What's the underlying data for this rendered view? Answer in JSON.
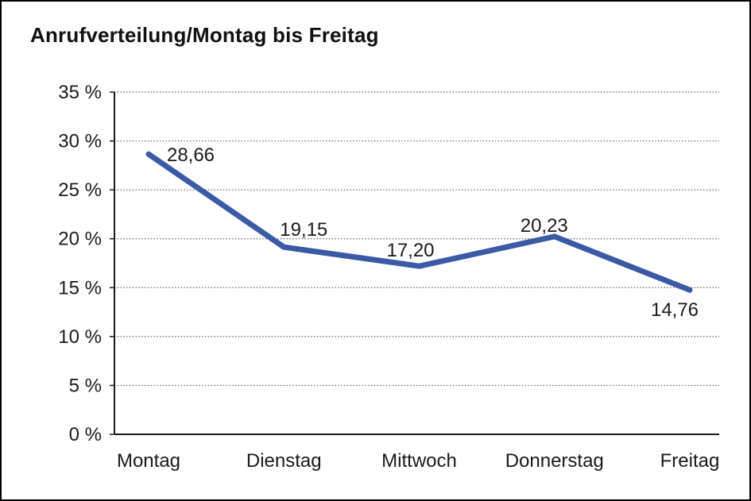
{
  "title": "Anrufverteilung/Montag bis Freitag",
  "chart_data": {
    "type": "line",
    "title": "Anrufverteilung/Montag bis Freitag",
    "categories": [
      "Montag",
      "Dienstag",
      "Mittwoch",
      "Donnerstag",
      "Freitag"
    ],
    "series": [
      {
        "name": "Anrufverteilung",
        "values": [
          28.66,
          19.15,
          17.2,
          20.23,
          14.76
        ]
      }
    ],
    "data_labels": [
      "28,66",
      "19,15",
      "17,20",
      "20,23",
      "14,76"
    ],
    "ylim": [
      0,
      35
    ],
    "ytick_values": [
      0,
      5,
      10,
      15,
      20,
      25,
      30,
      35
    ],
    "ytick_labels": [
      "0 %",
      "5 %",
      "10 %",
      "15 %",
      "20 %",
      "25 %",
      "30 %",
      "35 %"
    ],
    "xlabel": "",
    "ylabel": "",
    "grid": "horizontal-dotted",
    "legend": "none",
    "line_color": "#3B5AA5",
    "axis_color": "#1a1a1a",
    "grid_color": "#555555",
    "text_color": "#1a1a1a"
  }
}
